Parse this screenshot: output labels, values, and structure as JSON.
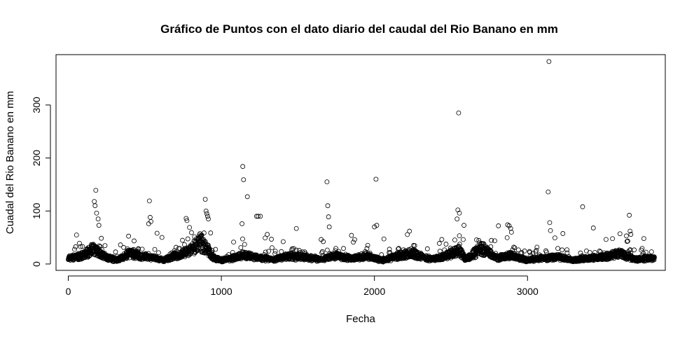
{
  "chart_data": {
    "type": "scatter",
    "title": "Gráfico de Puntos con el dato diario del caudal del Rio Banano en mm",
    "xlabel": "Fecha",
    "ylabel": "Cuadal del Rio Banano en mm",
    "xlim": [
      -80,
      3900
    ],
    "ylim": [
      -12,
      395
    ],
    "xticks": [
      0,
      1000,
      2000,
      3000
    ],
    "yticks": [
      0,
      100,
      200,
      300
    ],
    "grid": false,
    "legend": "none",
    "n_points": 3830,
    "marker": "open-circle",
    "colors": {
      "points": "#000000",
      "axes": "#000000",
      "background": "#ffffff"
    },
    "baseline": [
      [
        0,
        10
      ],
      [
        100,
        15
      ],
      [
        160,
        28
      ],
      [
        250,
        12
      ],
      [
        320,
        6
      ],
      [
        400,
        20
      ],
      [
        470,
        14
      ],
      [
        560,
        10
      ],
      [
        620,
        6
      ],
      [
        700,
        15
      ],
      [
        780,
        22
      ],
      [
        860,
        42
      ],
      [
        900,
        30
      ],
      [
        950,
        10
      ],
      [
        1000,
        6
      ],
      [
        1100,
        12
      ],
      [
        1150,
        16
      ],
      [
        1250,
        10
      ],
      [
        1350,
        8
      ],
      [
        1450,
        14
      ],
      [
        1550,
        12
      ],
      [
        1650,
        8
      ],
      [
        1750,
        14
      ],
      [
        1850,
        10
      ],
      [
        1950,
        14
      ],
      [
        2050,
        6
      ],
      [
        2150,
        14
      ],
      [
        2250,
        20
      ],
      [
        2350,
        8
      ],
      [
        2450,
        12
      ],
      [
        2550,
        25
      ],
      [
        2600,
        8
      ],
      [
        2700,
        30
      ],
      [
        2800,
        10
      ],
      [
        2900,
        15
      ],
      [
        3000,
        6
      ],
      [
        3100,
        10
      ],
      [
        3200,
        12
      ],
      [
        3300,
        6
      ],
      [
        3400,
        10
      ],
      [
        3500,
        12
      ],
      [
        3600,
        20
      ],
      [
        3700,
        8
      ],
      [
        3830,
        10
      ]
    ],
    "peaks": [
      {
        "x": 170,
        "y": 118
      },
      {
        "x": 175,
        "y": 110
      },
      {
        "x": 180,
        "y": 139
      },
      {
        "x": 185,
        "y": 96
      },
      {
        "x": 195,
        "y": 85
      },
      {
        "x": 200,
        "y": 73
      },
      {
        "x": 530,
        "y": 119
      },
      {
        "x": 535,
        "y": 88
      },
      {
        "x": 540,
        "y": 80
      },
      {
        "x": 525,
        "y": 76
      },
      {
        "x": 580,
        "y": 58
      },
      {
        "x": 770,
        "y": 86
      },
      {
        "x": 775,
        "y": 82
      },
      {
        "x": 895,
        "y": 122
      },
      {
        "x": 900,
        "y": 100
      },
      {
        "x": 905,
        "y": 95
      },
      {
        "x": 910,
        "y": 90
      },
      {
        "x": 915,
        "y": 85
      },
      {
        "x": 1140,
        "y": 184
      },
      {
        "x": 1145,
        "y": 159
      },
      {
        "x": 1135,
        "y": 76
      },
      {
        "x": 1170,
        "y": 127
      },
      {
        "x": 1230,
        "y": 90
      },
      {
        "x": 1240,
        "y": 90
      },
      {
        "x": 1255,
        "y": 90
      },
      {
        "x": 1490,
        "y": 67
      },
      {
        "x": 1690,
        "y": 155
      },
      {
        "x": 1695,
        "y": 110
      },
      {
        "x": 1700,
        "y": 89
      },
      {
        "x": 1705,
        "y": 70
      },
      {
        "x": 1850,
        "y": 54
      },
      {
        "x": 2000,
        "y": 70
      },
      {
        "x": 2010,
        "y": 160
      },
      {
        "x": 2015,
        "y": 73
      },
      {
        "x": 2550,
        "y": 285
      },
      {
        "x": 2545,
        "y": 102
      },
      {
        "x": 2555,
        "y": 96
      },
      {
        "x": 2540,
        "y": 85
      },
      {
        "x": 2585,
        "y": 73
      },
      {
        "x": 2810,
        "y": 72
      },
      {
        "x": 2870,
        "y": 74
      },
      {
        "x": 2880,
        "y": 72
      },
      {
        "x": 2890,
        "y": 67
      },
      {
        "x": 2895,
        "y": 60
      },
      {
        "x": 3140,
        "y": 382
      },
      {
        "x": 3135,
        "y": 136
      },
      {
        "x": 3145,
        "y": 78
      },
      {
        "x": 3150,
        "y": 63
      },
      {
        "x": 3360,
        "y": 108
      },
      {
        "x": 3430,
        "y": 68
      },
      {
        "x": 3665,
        "y": 92
      },
      {
        "x": 3670,
        "y": 62
      },
      {
        "x": 3675,
        "y": 56
      },
      {
        "x": 3760,
        "y": 48
      }
    ]
  }
}
